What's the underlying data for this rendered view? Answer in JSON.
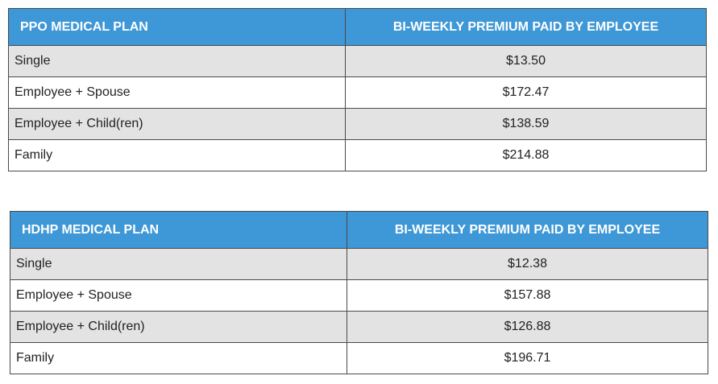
{
  "tables": [
    {
      "headers": [
        "PPO MEDICAL PLAN",
        "BI-WEEKLY PREMIUM PAID BY EMPLOYEE"
      ],
      "rows": [
        {
          "tier": "Single",
          "premium": "$13.50"
        },
        {
          "tier": "Employee + Spouse",
          "premium": "$172.47"
        },
        {
          "tier": "Employee + Child(ren)",
          "premium": "$138.59"
        },
        {
          "tier": "Family",
          "premium": "$214.88"
        }
      ]
    },
    {
      "headers": [
        "HDHP MEDICAL PLAN",
        "BI-WEEKLY PREMIUM PAID BY EMPLOYEE"
      ],
      "rows": [
        {
          "tier": "Single",
          "premium": "$12.38"
        },
        {
          "tier": "Employee + Spouse",
          "premium": "$157.88"
        },
        {
          "tier": "Employee + Child(ren)",
          "premium": "$126.88"
        },
        {
          "tier": "Family",
          "premium": "$196.71"
        }
      ]
    }
  ],
  "colors": {
    "header_bg": "#3e97d6",
    "header_text": "#ffffff",
    "shaded_row_bg": "#e3e3e3",
    "plain_row_bg": "#ffffff",
    "border": "#4a4a4a"
  }
}
